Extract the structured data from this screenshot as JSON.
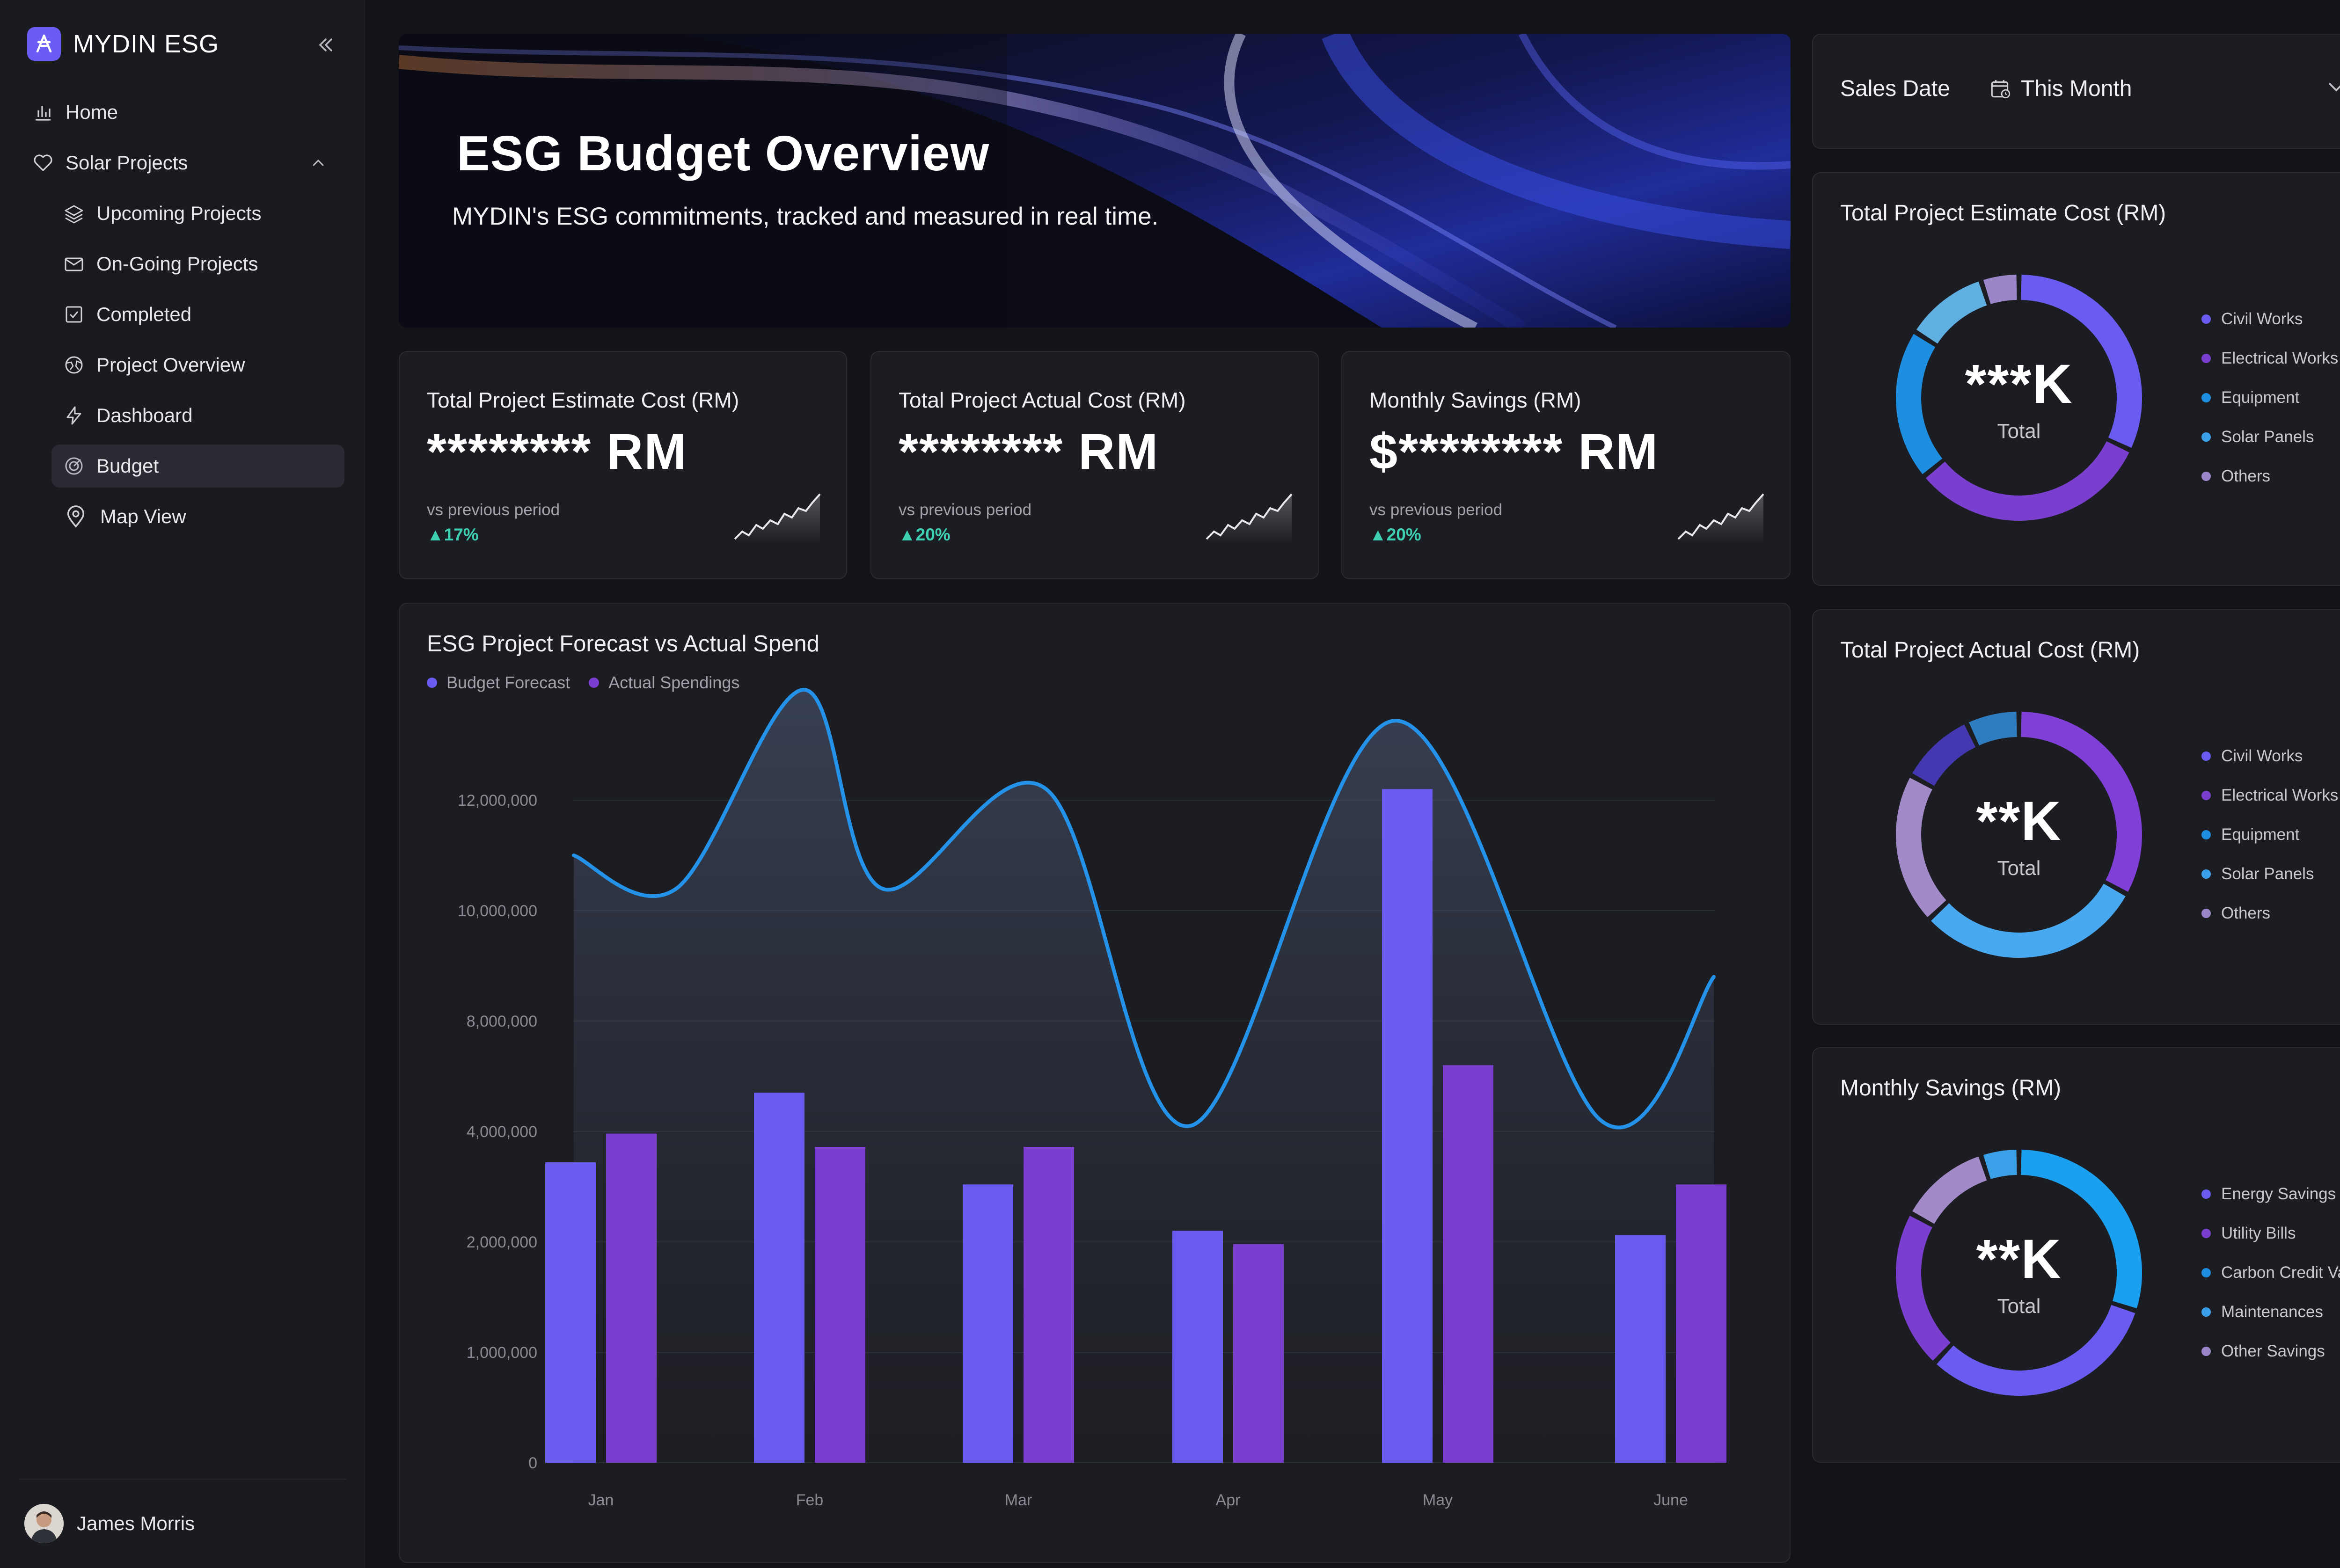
{
  "sidebar": {
    "brand": "MYDIN ESG",
    "items": [
      {
        "label": "Home"
      },
      {
        "label": "Solar Projects"
      },
      {
        "label": "Upcoming Projects"
      },
      {
        "label": "On-Going Projects"
      },
      {
        "label": "Completed"
      },
      {
        "label": "Project Overview"
      },
      {
        "label": "Dashboard"
      },
      {
        "label": "Budget"
      },
      {
        "label": "Map View"
      }
    ],
    "user_name": "James Morris"
  },
  "hero": {
    "title": "ESG Budget Overview",
    "subtitle": "MYDIN's ESG commitments, tracked and measured in real time."
  },
  "kpis": [
    {
      "title": "Total Project Estimate Cost (RM)",
      "value": "******** RM",
      "vs": "vs previous period",
      "delta": "17%"
    },
    {
      "title": "Total Project Actual Cost (RM)",
      "value": "******** RM",
      "vs": "vs previous period",
      "delta": "20%"
    },
    {
      "title": "Monthly Savings (RM)",
      "value": "$******** RM",
      "vs": "vs previous period",
      "delta": "20%"
    }
  ],
  "filter": {
    "label": "Sales Date",
    "value": "This Month"
  },
  "colors": {
    "forecast": "#6a5cf0",
    "actual": "#7b3fd0",
    "line": "#2392e8",
    "accent": "#6a5cf5",
    "positive": "#3fd0b4"
  },
  "chart_data": [
    {
      "type": "bar",
      "title": "ESG Project Forecast vs Actual Spend",
      "categories": [
        "Jan",
        "Feb",
        "Mar",
        "Apr",
        "May",
        "June"
      ],
      "y_ticks": [
        "12,000,000",
        "10,000,000",
        "8,000,000",
        "4,000,000",
        "2,000,000",
        "1,000,000",
        "0"
      ],
      "series": [
        {
          "name": "Budget Forecast",
          "values": [
            2.72,
            3.35,
            2.52,
            2.1,
            6.1,
            2.06
          ]
        },
        {
          "name": "Actual Spendings",
          "values": [
            2.98,
            2.86,
            2.86,
            1.98,
            3.6,
            2.52
          ]
        }
      ],
      "line_values": [
        5.5,
        5.2,
        7.0,
        5.2,
        6.1,
        3.05,
        6.72,
        3.1,
        4.4
      ],
      "line_x": [
        0,
        0.5,
        1.12,
        1.5,
        2.3,
        3.0,
        4.0,
        5.0,
        5.55
      ],
      "note_scale": "values in tick-index units"
    },
    {
      "type": "pie",
      "title": "Total Project Estimate Cost (RM)",
      "center_value": "***K",
      "center_label": "Total",
      "labels": [
        "Civil Works",
        "Electrical Works",
        "Equipment",
        "Solar Panels",
        "Others"
      ],
      "values": [
        32,
        32,
        20,
        11,
        5
      ],
      "colors": [
        "#6a5cf0",
        "#7b3fd0",
        "#1e8fe0",
        "#5fb0e0",
        "#9a86c8"
      ]
    },
    {
      "type": "pie",
      "title": "Total Project Actual Cost (RM)",
      "center_value": "**K",
      "center_label": "Total",
      "labels": [
        "Civil Works",
        "Electrical Works",
        "Equipment",
        "Solar Panels",
        "Others"
      ],
      "values": [
        33,
        30,
        20,
        10,
        7
      ],
      "colors": [
        "#8040d8",
        "#48a8f0",
        "#a28ac8",
        "#4338b0",
        "#2e7dc0"
      ]
    },
    {
      "type": "pie",
      "title": "Monthly Savings (RM)",
      "center_value": "**K",
      "center_label": "Total",
      "labels": [
        "Energy Savings",
        "Utility Bills",
        "Carbon Credit Value",
        "Maintenances",
        "Other Savings"
      ],
      "values": [
        30,
        32,
        21,
        12,
        5
      ],
      "colors": [
        "#1aa0ee",
        "#6a5cf0",
        "#7b3fd0",
        "#a28ac8",
        "#3aa0e8"
      ]
    }
  ]
}
